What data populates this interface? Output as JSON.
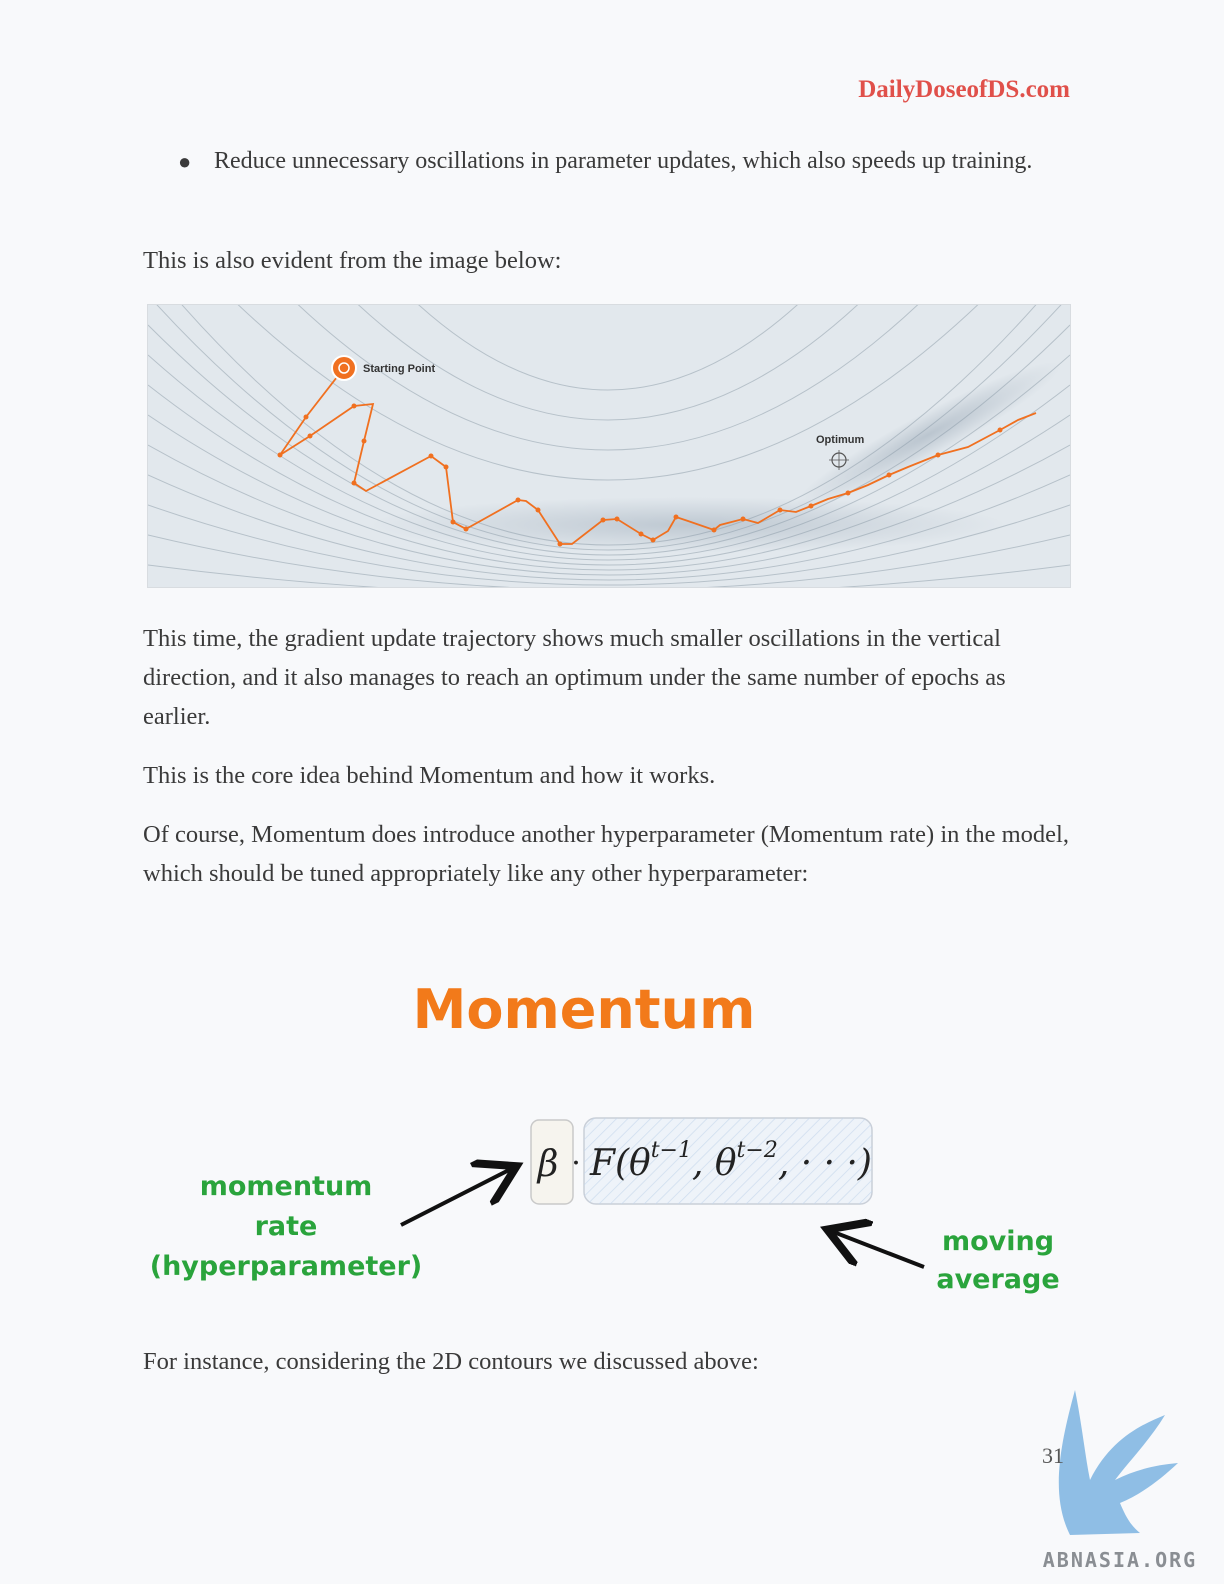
{
  "header": {
    "site": "DailyDoseofDS.com"
  },
  "bullets": [
    {
      "text": "Reduce unnecessary oscillations in parameter updates, which also speeds up training."
    }
  ],
  "paragraphs": {
    "evident": "This is also evident from the image below:",
    "trajectory": "This time, the gradient update trajectory shows much smaller oscillations in the vertical direction, and it also manages to reach an optimum under the same number of epochs as earlier.",
    "core_idea": "This is the core idea behind Momentum and how it works.",
    "hyperparam": "Of course, Momentum does introduce another hyperparameter (Momentum rate) in the model, which should be tuned appropriately like any other hyperparameter:",
    "instance": "For instance, considering the 2D contours we discussed above:"
  },
  "contour_figure": {
    "start_label": "Starting Point",
    "optimum_label": "Optimum",
    "path_color": "#f07020"
  },
  "momentum_figure": {
    "title": "Momentum",
    "beta": "β",
    "dot": "·",
    "formula": "F(θ",
    "sup1": "t−1",
    "mid": ", θ",
    "sup2": "t−2",
    "tail": ", · · ·)",
    "rate_label_1": "momentum",
    "rate_label_2": "rate",
    "rate_label_3": "(hyperparameter)",
    "avg_label_1": "moving",
    "avg_label_2": "average",
    "title_color": "#f27a1a",
    "annotation_color": "#2aa43c"
  },
  "footer": {
    "page_number": "31",
    "watermark": "ABNASIA.ORG"
  }
}
